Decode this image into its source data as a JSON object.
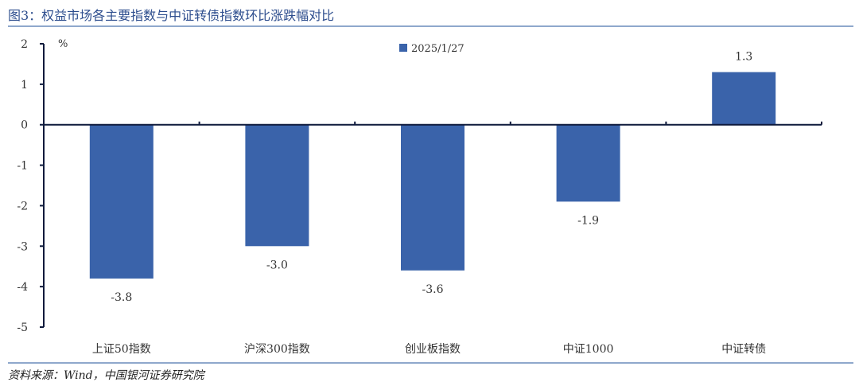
{
  "figure_title": "图3：权益市场各主要指数与中证转债指数环比涨跌幅对比",
  "source": "资料来源：Wind，中国银河证券研究院",
  "chart_data": {
    "type": "bar",
    "title": "",
    "xlabel": "",
    "ylabel": "%",
    "categories": [
      "上证50指数",
      "沪深300指数",
      "创业板指数",
      "中证1000",
      "中证转债"
    ],
    "series": [
      {
        "name": "2025/1/27",
        "values": [
          -3.8,
          -3.0,
          -3.6,
          -1.9,
          1.3
        ],
        "color": "#3A63AA"
      }
    ],
    "data_labels": [
      "-3.8",
      "-3.0",
      "-3.6",
      "-1.9",
      "1.3"
    ],
    "ylim": [
      -5,
      2
    ],
    "yticks": [
      2,
      1,
      0,
      -1,
      -2,
      -3,
      -4,
      -5
    ],
    "ytick_labels": [
      "2",
      "1",
      "0",
      "-1",
      "-2",
      "-3",
      "-4",
      "-5"
    ],
    "grid": false,
    "legend_position": "top-center"
  }
}
